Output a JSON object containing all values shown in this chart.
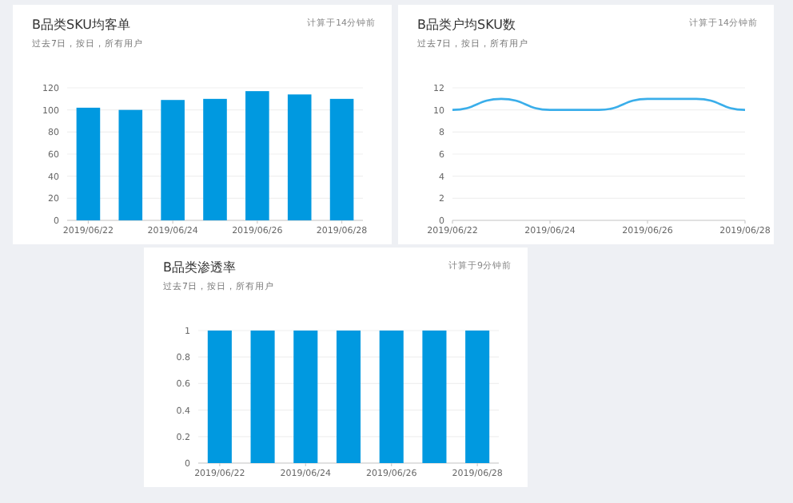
{
  "chart_data": [
    {
      "type": "bar",
      "title": "B品类SKU均客单",
      "subtitle": "过去7日，按日，所有用户",
      "annotations": [
        "计算于14分钟前"
      ],
      "categories": [
        "2019/06/22",
        null,
        "2019/06/24",
        null,
        "2019/06/26",
        null,
        "2019/06/28"
      ],
      "values": [
        102,
        100,
        109,
        110,
        117,
        114,
        110
      ],
      "color": "#0099e0",
      "ylim": [
        0,
        120
      ],
      "yticks": [
        0,
        20,
        40,
        60,
        80,
        100,
        120
      ],
      "grid": "y"
    },
    {
      "type": "line",
      "title": "B品类户均SKU数",
      "subtitle": "过去7日，按日，所有用户",
      "annotations": [
        "计算于14分钟前"
      ],
      "categories": [
        "2019/06/22",
        null,
        "2019/06/24",
        null,
        "2019/06/26",
        null,
        "2019/06/28"
      ],
      "values": [
        10,
        11,
        10,
        10,
        11,
        11,
        10
      ],
      "color": "#3aaeea",
      "ylim": [
        0,
        12
      ],
      "yticks": [
        0,
        2,
        4,
        6,
        8,
        10,
        12
      ],
      "grid": "y"
    },
    {
      "type": "bar",
      "title": "B品类渗透率",
      "subtitle": "过去7日，按日，所有用户",
      "annotations": [
        "计算于9分钟前"
      ],
      "categories": [
        "2019/06/22",
        null,
        "2019/06/24",
        null,
        "2019/06/26",
        null,
        "2019/06/28"
      ],
      "values": [
        1,
        1,
        1,
        1,
        1,
        1,
        1
      ],
      "color": "#0099e0",
      "ylim": [
        0,
        1
      ],
      "yticks": [
        0,
        0.2,
        0.4,
        0.6,
        0.8,
        1
      ],
      "grid": "y"
    }
  ]
}
